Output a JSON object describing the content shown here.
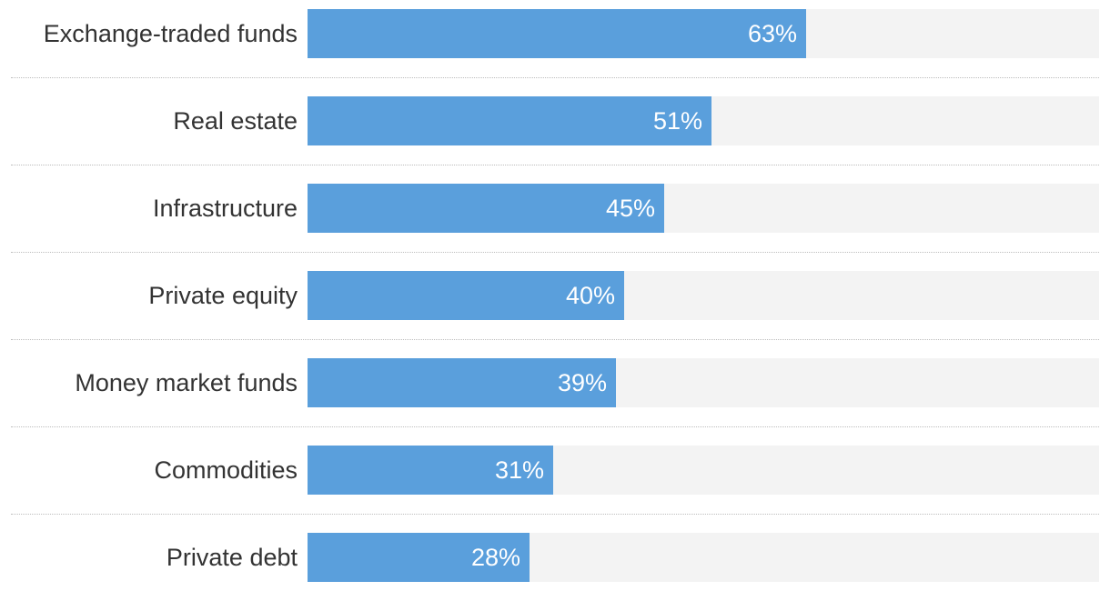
{
  "chart_data": {
    "type": "bar",
    "orientation": "horizontal",
    "categories": [
      "Exchange-traded funds",
      "Real estate",
      "Infrastructure",
      "Private equity",
      "Money market funds",
      "Commodities",
      "Private debt"
    ],
    "values": [
      63,
      51,
      45,
      40,
      39,
      31,
      28
    ],
    "value_labels": [
      "63%",
      "51%",
      "45%",
      "40%",
      "39%",
      "31%",
      "28%"
    ],
    "xlim": [
      0,
      100
    ],
    "unit": "%",
    "grid": false,
    "legend": "none"
  },
  "colors": {
    "bar": "#5a9fdc",
    "track": "#f3f3f3",
    "label": "#333333",
    "value_label": "#ffffff",
    "separator": "#bdbdbd"
  }
}
